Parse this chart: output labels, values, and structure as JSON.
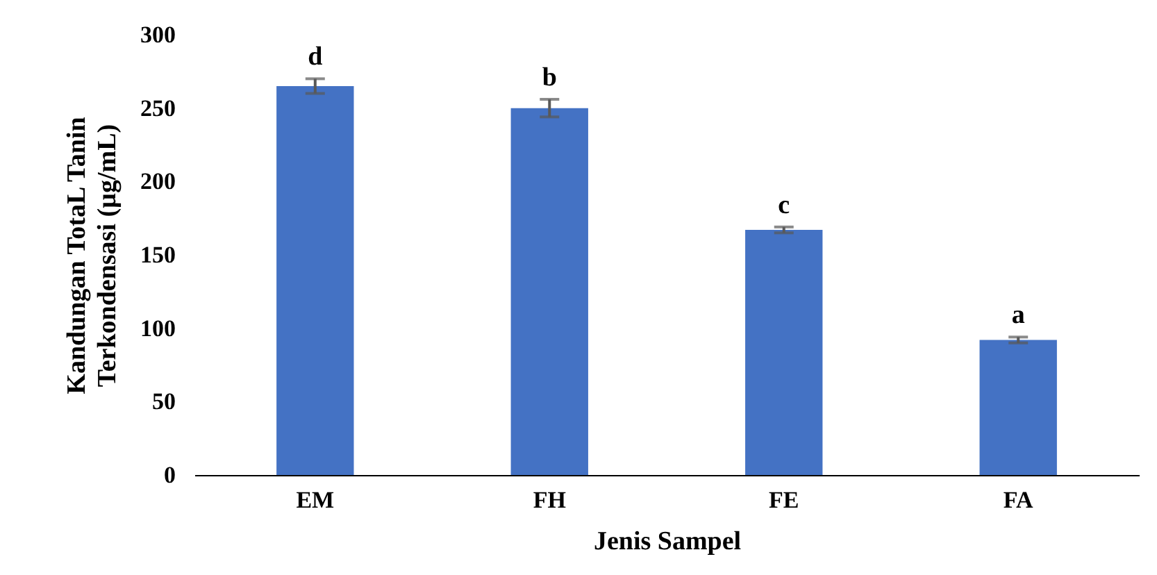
{
  "chart_data": {
    "type": "bar",
    "categories": [
      "EM",
      "FH",
      "FE",
      "FA"
    ],
    "values": [
      265,
      250,
      167,
      92
    ],
    "errors": [
      5,
      6,
      2,
      2
    ],
    "color": "#4472c4",
    "xlabel": "Jenis Sampel",
    "ylabel": "Kandungan TotaL Tanin\nTerkondensasi (µg/mL)",
    "ylim": [
      0,
      300
    ],
    "yticks": [
      0,
      50,
      100,
      150,
      200,
      250,
      300
    ],
    "annotations": [
      {
        "text": "d",
        "x": "EM",
        "y": 270
      },
      {
        "text": "b",
        "x": "FH",
        "y": 256
      },
      {
        "text": "c",
        "x": "FE",
        "y": 169
      },
      {
        "text": "a",
        "x": "FA",
        "y": 94
      }
    ],
    "grid": false
  }
}
